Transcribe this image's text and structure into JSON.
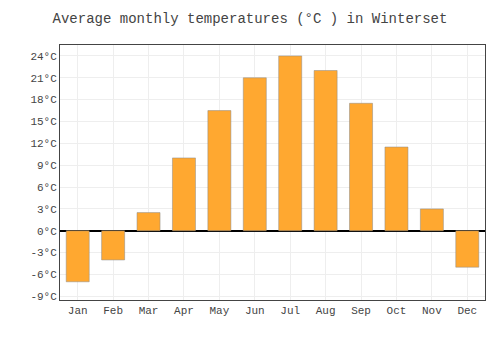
{
  "chart_data": {
    "type": "bar",
    "title": "Average monthly temperatures (°C ) in Winterset",
    "categories": [
      "Jan",
      "Feb",
      "Mar",
      "Apr",
      "May",
      "Jun",
      "Jul",
      "Aug",
      "Sep",
      "Oct",
      "Nov",
      "Dec"
    ],
    "values": [
      -7,
      -4,
      2.5,
      10,
      16.5,
      21,
      24,
      22,
      17.5,
      11.5,
      3,
      -5
    ],
    "color": "#FFA830",
    "ylim": [
      -9.5,
      25.5
    ],
    "yticks": [
      {
        "value": -9,
        "label": "-9°C"
      },
      {
        "value": -6,
        "label": "-6°C"
      },
      {
        "value": -3,
        "label": "-3°C"
      },
      {
        "value": 0,
        "label": "0°C"
      },
      {
        "value": 3,
        "label": "3°C"
      },
      {
        "value": 6,
        "label": "6°C"
      },
      {
        "value": 9,
        "label": "9°C"
      },
      {
        "value": 12,
        "label": "12°C"
      },
      {
        "value": 15,
        "label": "15°C"
      },
      {
        "value": 18,
        "label": "18°C"
      },
      {
        "value": 21,
        "label": "21°C"
      },
      {
        "value": 24,
        "label": "24°C"
      }
    ],
    "grid": true
  }
}
